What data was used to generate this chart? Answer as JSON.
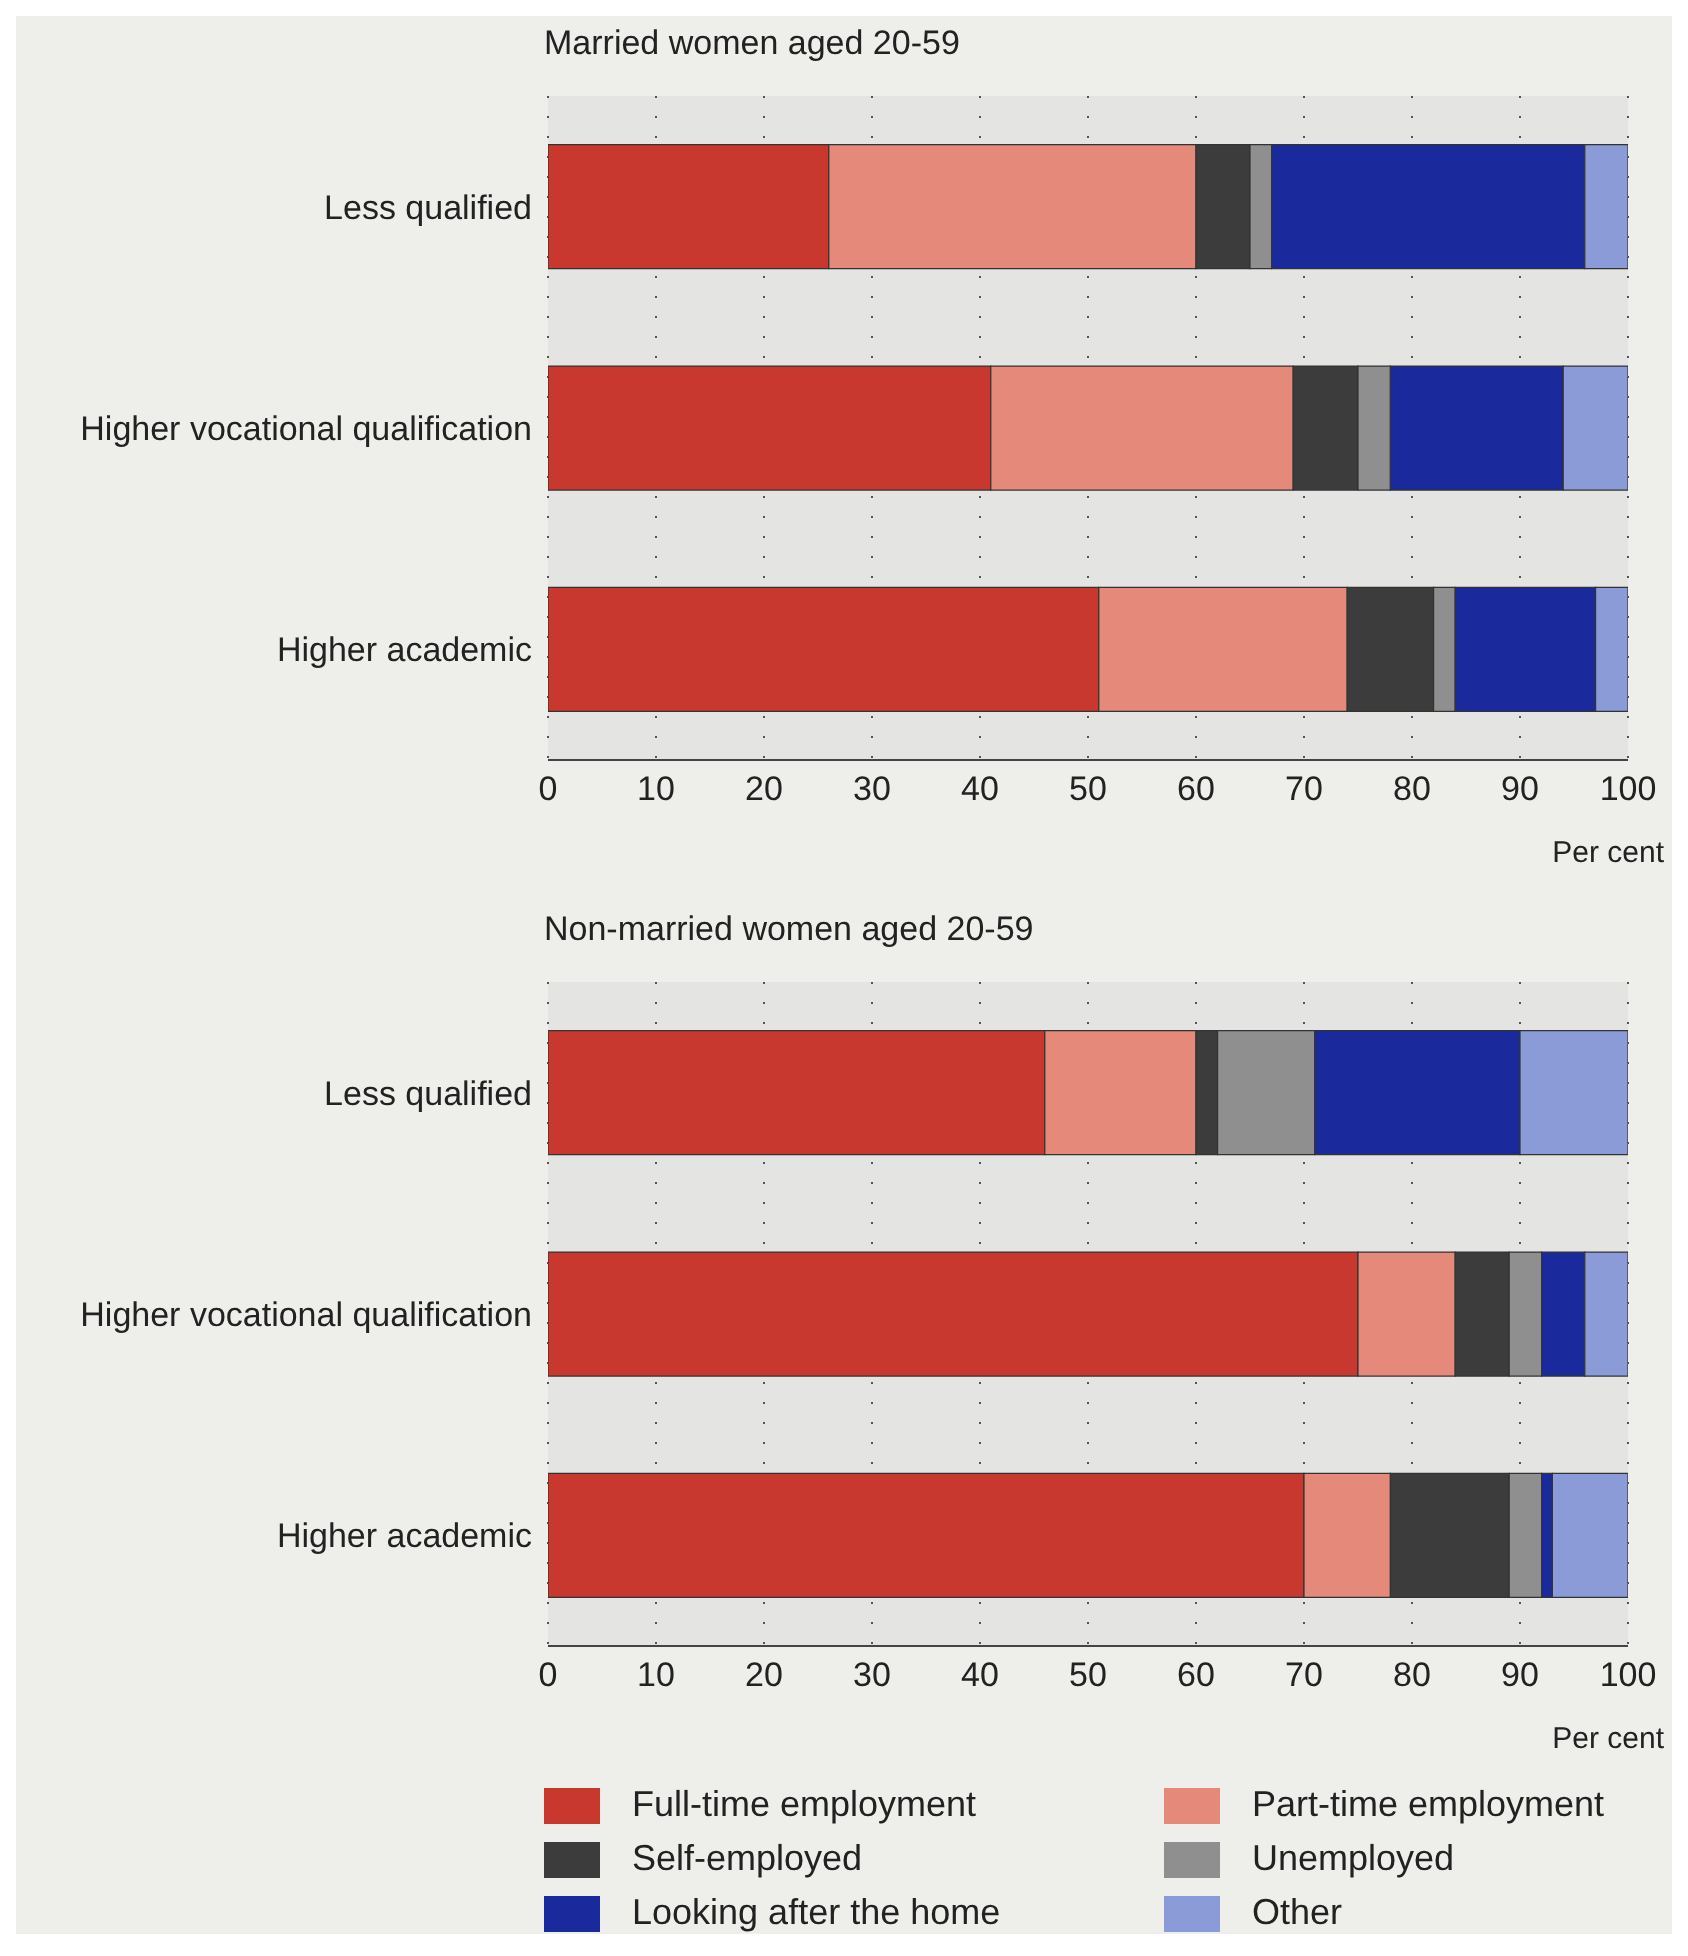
{
  "chart_data": [
    {
      "type": "bar",
      "orientation": "horizontal",
      "stacked": true,
      "title": "Married women aged 20-59",
      "xlabel": "Per cent",
      "categories": [
        "Less qualified",
        "Higher vocational qualification",
        "Higher academic"
      ],
      "series": [
        {
          "color": "#c8382e",
          "values": [
            26,
            41,
            51
          ]
        },
        {
          "color": "#e5897a",
          "values": [
            34,
            28,
            23
          ]
        },
        {
          "color": "#3c3c3c",
          "values": [
            5,
            6,
            8
          ]
        },
        {
          "color": "#8f8f8f",
          "values": [
            2,
            3,
            2
          ]
        },
        {
          "color": "#1a2a9c",
          "values": [
            29,
            16,
            13
          ]
        },
        {
          "color": "#8b9bd8",
          "values": [
            4,
            6,
            3
          ]
        }
      ],
      "xlim": [
        0,
        100
      ],
      "xticks": [
        0,
        10,
        20,
        30,
        40,
        50,
        60,
        70,
        80,
        90,
        100
      ],
      "grid": "x",
      "legend": false
    },
    {
      "type": "bar",
      "orientation": "horizontal",
      "stacked": true,
      "title": "Non-married women aged 20-59",
      "xlabel": "Per cent",
      "categories": [
        "Less qualified",
        "Higher vocational qualification",
        "Higher academic"
      ],
      "series": [
        {
          "name": "Full-time employment",
          "color": "#c8382e",
          "values": [
            46,
            75,
            70
          ]
        },
        {
          "name": "Part-time employment",
          "color": "#e5897a",
          "values": [
            14,
            9,
            8
          ]
        },
        {
          "name": "Self-employed",
          "color": "#3c3c3c",
          "values": [
            2,
            5,
            11
          ]
        },
        {
          "name": "Unemployed",
          "color": "#8f8f8f",
          "values": [
            9,
            3,
            3
          ]
        },
        {
          "name": "Looking after the home",
          "color": "#1a2a9c",
          "values": [
            19,
            4,
            1
          ]
        },
        {
          "name": "Other",
          "color": "#8b9bd8",
          "values": [
            10,
            4,
            7
          ]
        }
      ],
      "xlim": [
        0,
        100
      ],
      "xticks": [
        0,
        10,
        20,
        30,
        40,
        50,
        60,
        70,
        80,
        90,
        100
      ],
      "grid": "x",
      "legend": "bottom"
    }
  ]
}
